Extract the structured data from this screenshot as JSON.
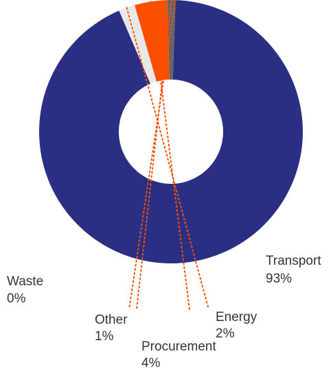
{
  "chart_data": {
    "type": "pie",
    "style": "donut",
    "title": "",
    "slices": [
      {
        "name": "Transport",
        "value": 93,
        "label": "93%",
        "color": "#2b2f83"
      },
      {
        "name": "Energy",
        "value": 2,
        "label": "2%",
        "color": "#e8e8e8"
      },
      {
        "name": "Procurement",
        "value": 4,
        "label": "4%",
        "color": "#fa4f00"
      },
      {
        "name": "Other",
        "value": 1,
        "label": "1%",
        "color": "#666666"
      },
      {
        "name": "Waste",
        "value": 0,
        "label": "0%",
        "color": "#2b2f83"
      }
    ],
    "leader_color": "#fa4f00",
    "legend": "none"
  }
}
